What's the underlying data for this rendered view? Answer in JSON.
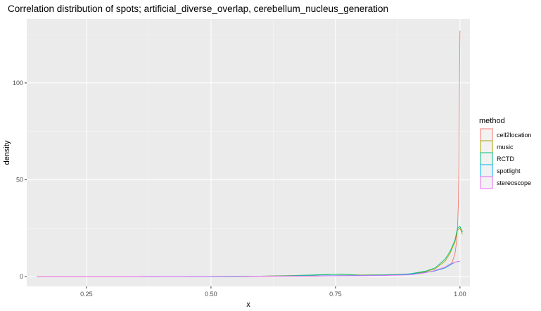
{
  "chart_data": {
    "type": "line",
    "subtype": "density",
    "title": "Correlation distribution of spots; artificial_diverse_overlap, cerebellum_nucleus_generation",
    "xlabel": "x",
    "ylabel": "density",
    "xlim": [
      0.13,
      1.02
    ],
    "ylim": [
      -5,
      133
    ],
    "x_ticks": [
      0.25,
      0.5,
      0.75,
      1.0
    ],
    "x_tick_labels": [
      "0.25",
      "0.50",
      "0.75",
      "1.00"
    ],
    "y_ticks": [
      0,
      50,
      100
    ],
    "y_tick_labels": [
      "0",
      "50",
      "100"
    ],
    "grid": true,
    "legend": {
      "title": "method",
      "position": "right"
    },
    "series": [
      {
        "name": "cell2location",
        "color": "#F8766D",
        "x": [
          0.15,
          0.3,
          0.5,
          0.7,
          0.85,
          0.9,
          0.93,
          0.95,
          0.97,
          0.98,
          0.985,
          0.99,
          0.993,
          0.995,
          0.997,
          0.998,
          0.999,
          1.0
        ],
        "y": [
          0,
          0,
          0.1,
          0.3,
          0.8,
          1.4,
          2.2,
          3.0,
          4.5,
          6,
          8,
          12,
          18,
          25,
          40,
          60,
          100,
          127
        ]
      },
      {
        "name": "music",
        "color": "#A3A500",
        "x": [
          0.45,
          0.6,
          0.7,
          0.75,
          0.8,
          0.85,
          0.9,
          0.93,
          0.95,
          0.97,
          0.98,
          0.99,
          0.995,
          1.0,
          1.005
        ],
        "y": [
          0,
          0.3,
          0.8,
          1.2,
          0.9,
          1.0,
          1.4,
          2.5,
          4,
          8,
          12,
          18,
          24,
          25,
          22
        ]
      },
      {
        "name": "RCTD",
        "color": "#00BF7D",
        "x": [
          0.5,
          0.65,
          0.72,
          0.76,
          0.8,
          0.86,
          0.9,
          0.93,
          0.95,
          0.97,
          0.98,
          0.99,
          0.995,
          1.0,
          1.005
        ],
        "y": [
          0,
          0.4,
          1.0,
          1.3,
          0.7,
          0.9,
          1.5,
          2.8,
          4.5,
          9,
          13,
          19,
          25,
          26,
          23
        ]
      },
      {
        "name": "spotlight",
        "color": "#00B0F6",
        "x": [
          0.36,
          0.5,
          0.62,
          0.7,
          0.8,
          0.88,
          0.92,
          0.95,
          0.97,
          0.98,
          0.99,
          1.0
        ],
        "y": [
          0,
          0.1,
          0.3,
          0.5,
          0.6,
          1.0,
          1.8,
          3.0,
          4.5,
          6.0,
          7.5,
          8.0
        ]
      },
      {
        "name": "stereoscope",
        "color": "#E76BF3",
        "x": [
          0.15,
          0.35,
          0.55,
          0.75,
          0.85,
          0.9,
          0.93,
          0.95,
          0.97,
          0.98,
          0.99,
          1.0
        ],
        "y": [
          0,
          0.1,
          0.2,
          0.4,
          0.6,
          1.0,
          2.0,
          3.2,
          5.0,
          6.5,
          7.5,
          8.0
        ]
      }
    ]
  }
}
